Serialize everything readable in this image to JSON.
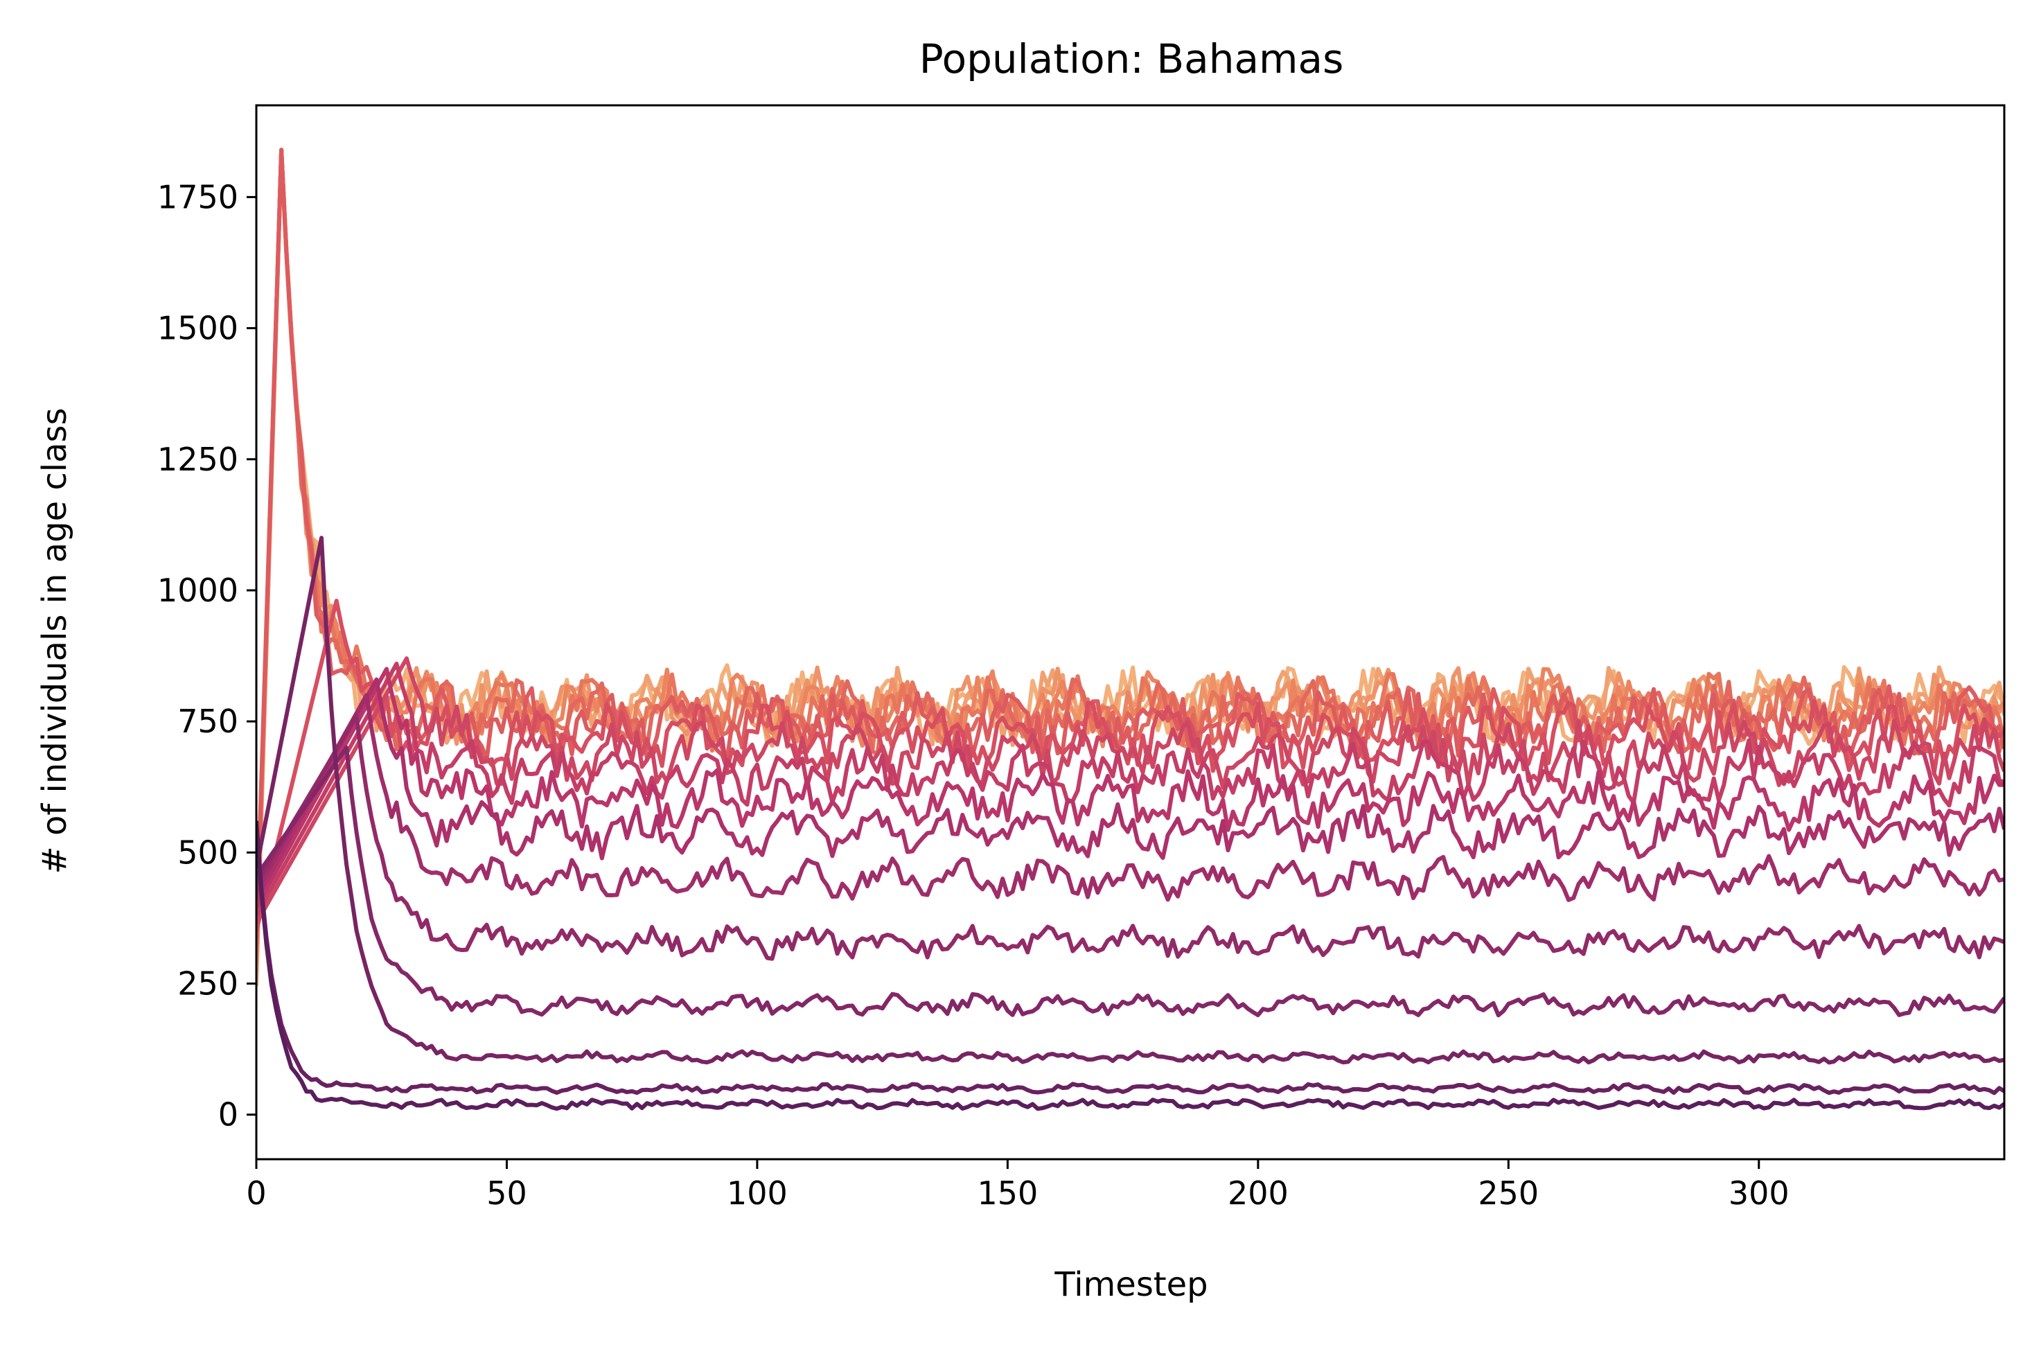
{
  "chart_data": {
    "type": "line",
    "title": "Population: Bahamas",
    "xlabel": "Timestep",
    "ylabel": "# of individuals in age class",
    "xlim": [
      0,
      349
    ],
    "ylim": [
      -85,
      1925
    ],
    "xticks": [
      0,
      50,
      100,
      150,
      200,
      250,
      300
    ],
    "yticks": [
      0,
      250,
      500,
      750,
      1000,
      1250,
      1500,
      1750
    ],
    "grid": false,
    "legend": "none",
    "colormap": "flare (dark purple #5e1f5e for youngest class to light orange #f0a070 for oldest class)",
    "series_color_stops": [
      "#5b1e5c",
      "#8a2868",
      "#b8336a",
      "#d9505f",
      "#ea7e5b",
      "#f3b07a"
    ],
    "age_class_levels": [
      {
        "class": 1,
        "approx_steady": 20,
        "early_peak_x": 0,
        "early_peak_y": 560
      },
      {
        "class": 2,
        "approx_steady": 50,
        "early_peak_x": 0,
        "early_peak_y": 560
      },
      {
        "class": 3,
        "approx_steady": 110,
        "early_peak_x": 13,
        "early_peak_y": 1100
      },
      {
        "class": 4,
        "approx_steady": 210,
        "early_peak_x": 18,
        "early_peak_y": 700
      },
      {
        "class": 5,
        "approx_steady": 330,
        "early_peak_x": 20,
        "early_peak_y": 760
      },
      {
        "class": 6,
        "approx_steady": 450,
        "early_peak_x": 22,
        "early_peak_y": 800
      },
      {
        "class": 7,
        "approx_steady": 540,
        "early_peak_x": 24,
        "early_peak_y": 830
      },
      {
        "class": 8,
        "approx_steady": 600,
        "early_peak_x": 26,
        "early_peak_y": 850
      },
      {
        "class": 9,
        "approx_steady": 650,
        "early_peak_x": 28,
        "early_peak_y": 860
      },
      {
        "class": 10,
        "approx_steady": 690,
        "early_peak_x": 30,
        "early_peak_y": 870
      },
      {
        "class": 11,
        "approx_steady": 720,
        "early_peak_x": 16,
        "early_peak_y": 980
      },
      {
        "class": 12,
        "approx_steady": 745,
        "early_peak_x": 5,
        "early_peak_y": 1840
      },
      {
        "class": 13,
        "approx_steady": 760,
        "early_peak_x": 5,
        "early_peak_y": 1840
      },
      {
        "class": 14,
        "approx_steady": 770,
        "early_peak_x": 5,
        "early_peak_y": 1840
      },
      {
        "class": 15,
        "approx_steady": 775,
        "early_peak_x": 5,
        "early_peak_y": 1840
      },
      {
        "class": 16,
        "approx_steady": 780,
        "early_peak_x": 5,
        "early_peak_y": 1840
      },
      {
        "class": 17,
        "approx_steady": 780,
        "early_peak_x": 5,
        "early_peak_y": 1840
      },
      {
        "class": 18,
        "approx_steady": 780,
        "early_peak_x": 5,
        "early_peak_y": 1840
      }
    ],
    "last_timestep": 349
  }
}
